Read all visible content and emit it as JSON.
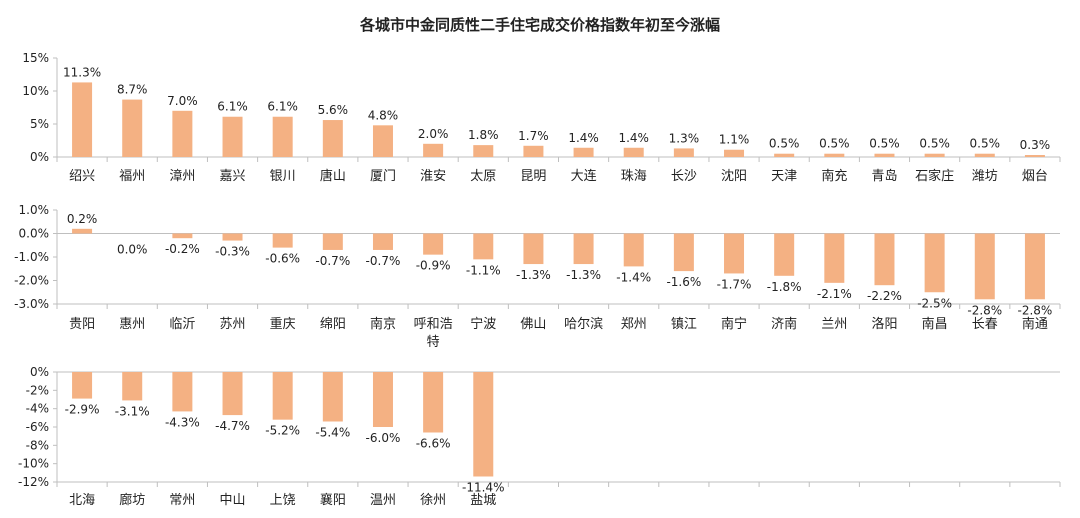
{
  "title": "各城市中金同质性二手住宅成交价格指数年初至今涨幅",
  "colors": {
    "bar": "#F4B183",
    "axis": "#bfbfbf",
    "text": "#222222"
  },
  "chart_data": [
    {
      "type": "bar",
      "title": "各城市中金同质性二手住宅成交价格指数年初至今涨幅",
      "categories": [
        "绍兴",
        "福州",
        "漳州",
        "嘉兴",
        "银川",
        "唐山",
        "厦门",
        "淮安",
        "太原",
        "昆明",
        "大连",
        "珠海",
        "长沙",
        "沈阳",
        "天津",
        "南充",
        "青岛",
        "石家庄",
        "潍坊",
        "烟台"
      ],
      "values": [
        11.3,
        8.7,
        7.0,
        6.1,
        6.1,
        5.6,
        4.8,
        2.0,
        1.8,
        1.7,
        1.4,
        1.4,
        1.3,
        1.1,
        0.5,
        0.5,
        0.5,
        0.5,
        0.5,
        0.3
      ],
      "labels": [
        "11.3%",
        "8.7%",
        "7.0%",
        "6.1%",
        "6.1%",
        "5.6%",
        "4.8%",
        "2.0%",
        "1.8%",
        "1.7%",
        "1.4%",
        "1.4%",
        "1.3%",
        "1.1%",
        "0.5%",
        "0.5%",
        "0.5%",
        "0.5%",
        "0.5%",
        "0.3%"
      ],
      "yticks": [
        0,
        5,
        10,
        15
      ],
      "ytick_labels": [
        "0%",
        "5%",
        "10%",
        "15%"
      ],
      "ylim": [
        0,
        15
      ],
      "grid": false
    },
    {
      "type": "bar",
      "categories": [
        "贵阳",
        "惠州",
        "临沂",
        "苏州",
        "重庆",
        "绵阳",
        "南京",
        "呼和浩特",
        "宁波",
        "佛山",
        "哈尔滨",
        "郑州",
        "镇江",
        "南宁",
        "济南",
        "兰州",
        "洛阳",
        "南昌",
        "长春",
        "南通"
      ],
      "values": [
        0.2,
        0.0,
        -0.2,
        -0.3,
        -0.6,
        -0.7,
        -0.7,
        -0.9,
        -1.1,
        -1.3,
        -1.3,
        -1.4,
        -1.6,
        -1.7,
        -1.8,
        -2.1,
        -2.2,
        -2.5,
        -2.8,
        -2.8
      ],
      "labels": [
        "0.2%",
        "0.0%",
        "-0.2%",
        "-0.3%",
        "-0.6%",
        "-0.7%",
        "-0.7%",
        "-0.9%",
        "-1.1%",
        "-1.3%",
        "-1.3%",
        "-1.4%",
        "-1.6%",
        "-1.7%",
        "-1.8%",
        "-2.1%",
        "-2.2%",
        "-2.5%",
        "-2.8%",
        "-2.8%"
      ],
      "yticks": [
        1,
        0,
        -1,
        -2,
        -3
      ],
      "ytick_labels": [
        "1.0%",
        "0.0%",
        "-1.0%",
        "-2.0%",
        "-3.0%"
      ],
      "ylim": [
        -3,
        1
      ],
      "grid": false
    },
    {
      "type": "bar",
      "categories": [
        "北海",
        "廊坊",
        "常州",
        "中山",
        "上饶",
        "襄阳",
        "温州",
        "徐州",
        "盐城"
      ],
      "values": [
        -2.9,
        -3.1,
        -4.3,
        -4.7,
        -5.2,
        -5.4,
        -6.0,
        -6.6,
        -11.4
      ],
      "labels": [
        "-2.9%",
        "-3.1%",
        "-4.3%",
        "-4.7%",
        "-5.2%",
        "-5.4%",
        "-6.0%",
        "-6.6%",
        "-11.4%"
      ],
      "yticks": [
        0,
        -2,
        -4,
        -6,
        -8,
        -10,
        -12
      ],
      "ytick_labels": [
        "0%",
        "-2%",
        "-4%",
        "-6%",
        "-8%",
        "-10%",
        "-12%"
      ],
      "ylim": [
        -12,
        0
      ],
      "grid": false
    }
  ]
}
